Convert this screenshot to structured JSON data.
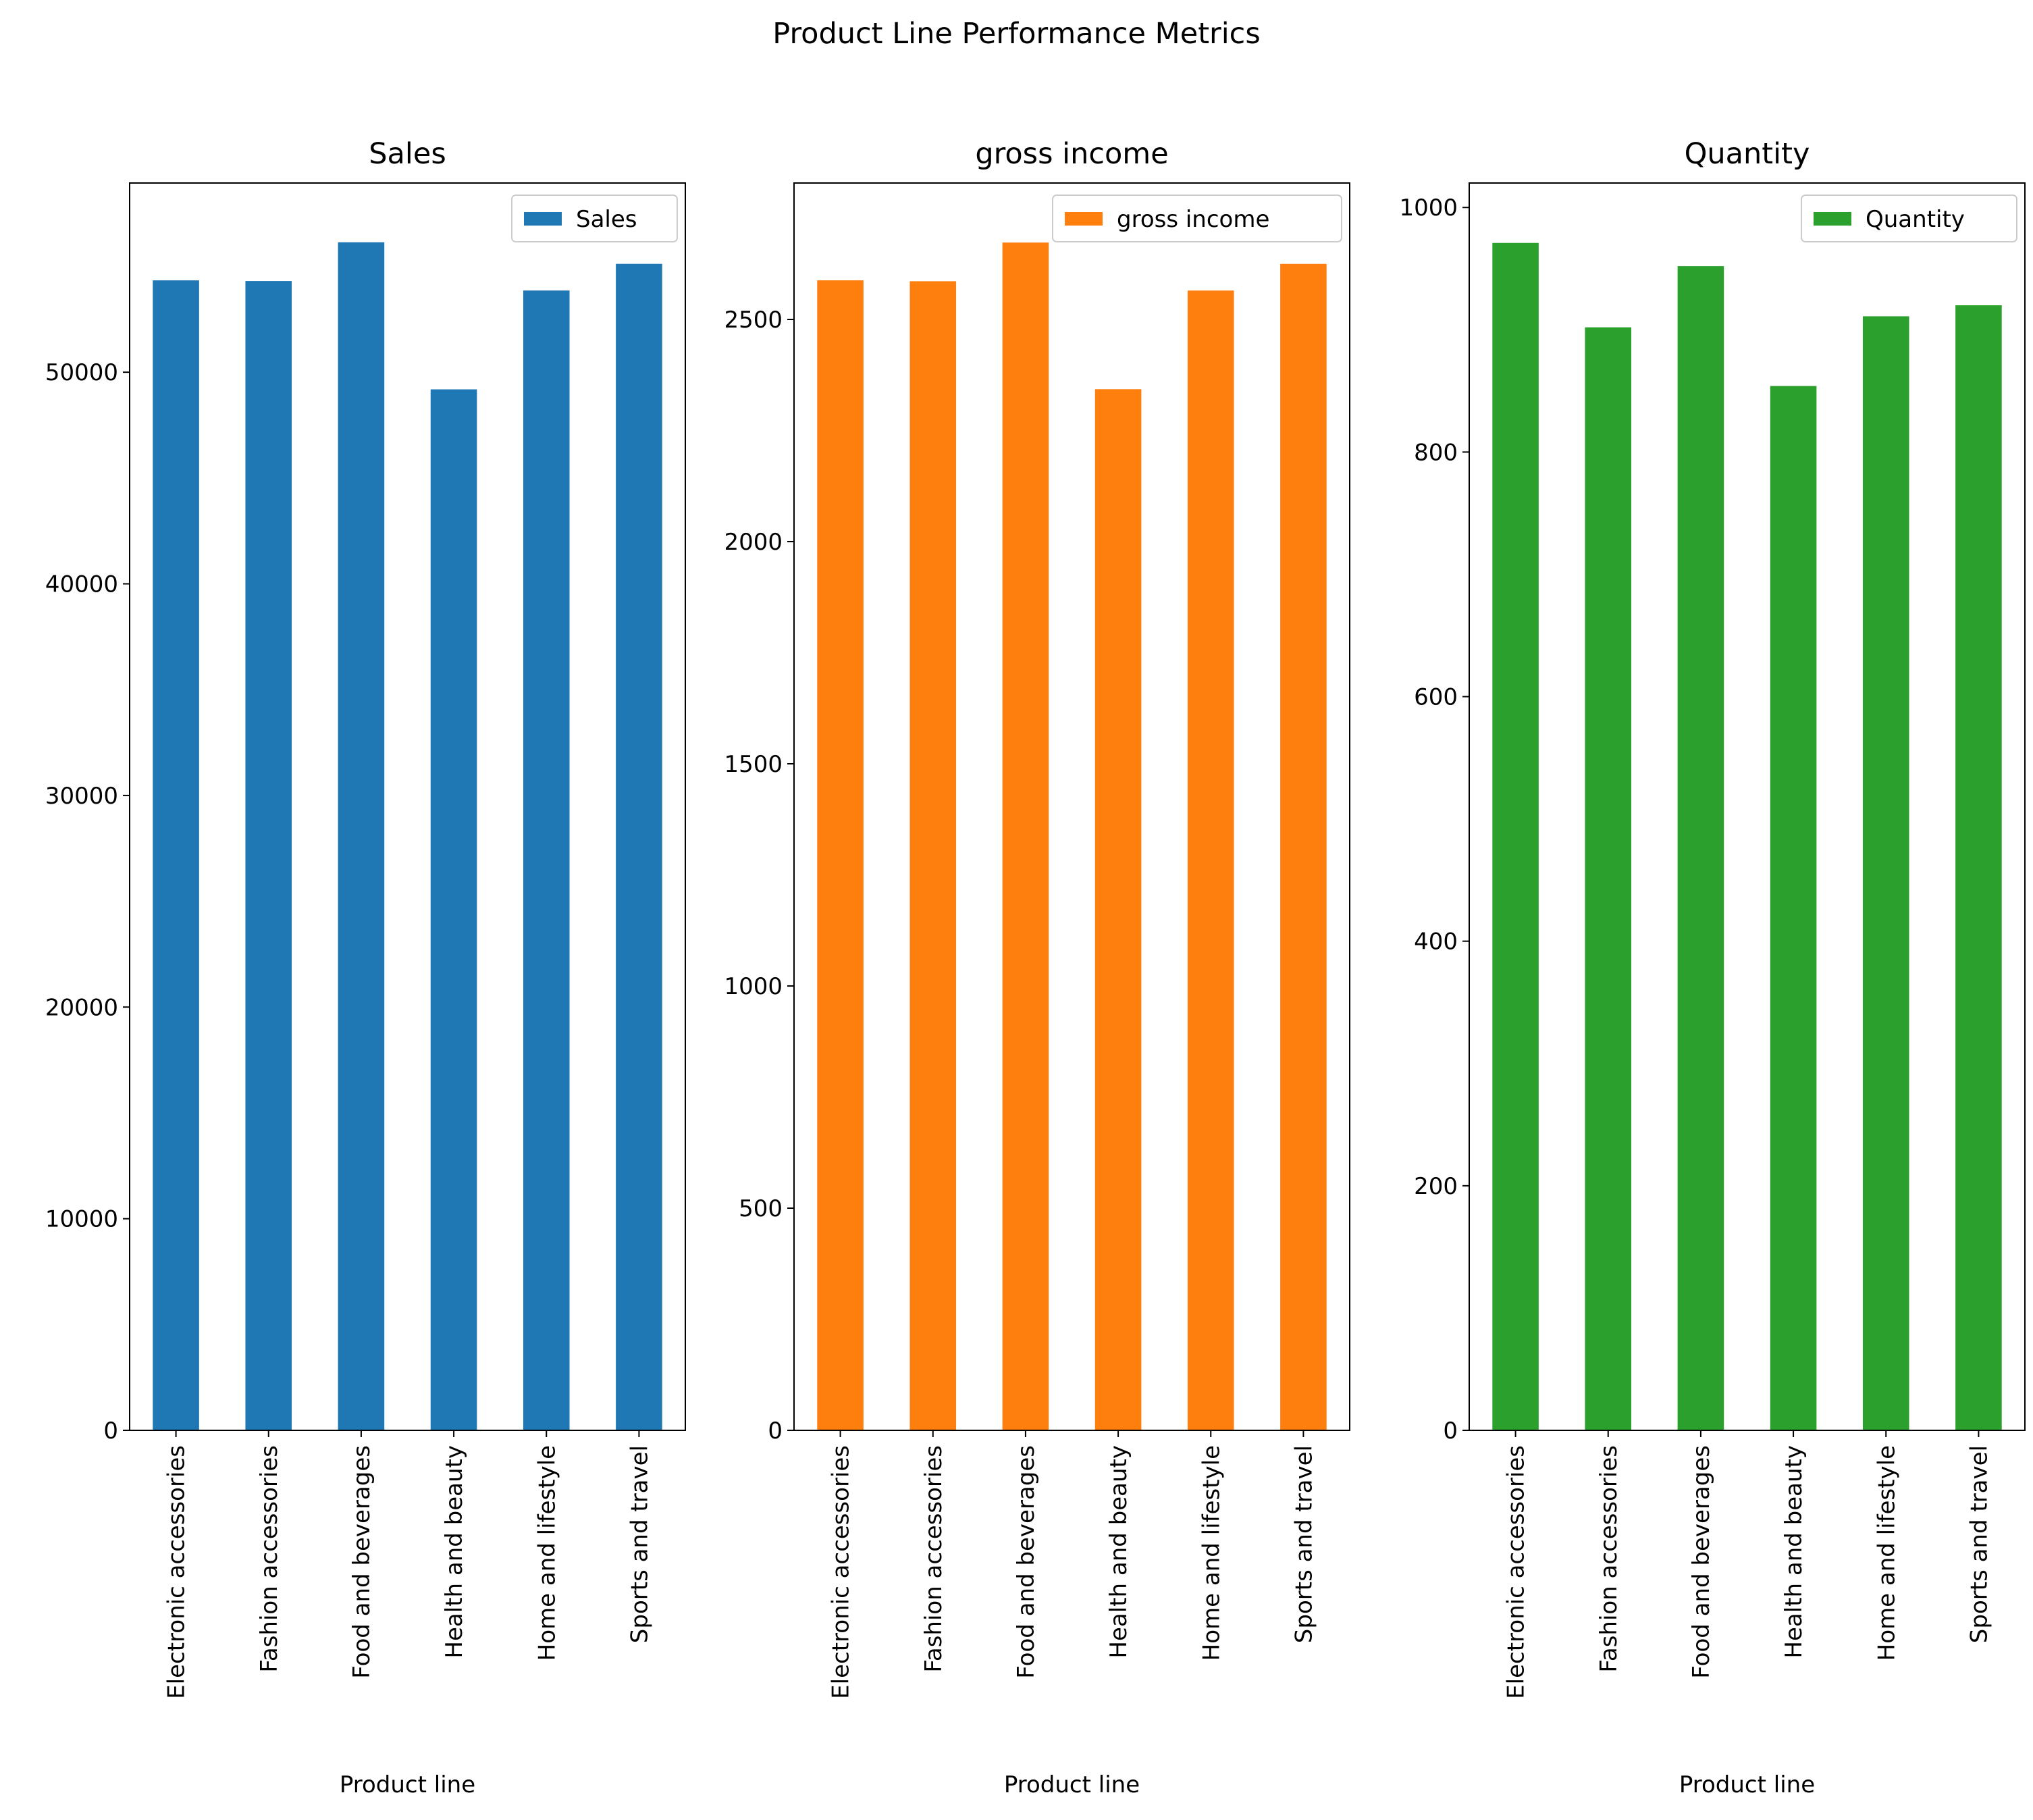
{
  "figure": {
    "suptitle": "Product Line Performance Metrics"
  },
  "chart_data": [
    {
      "type": "bar",
      "title": "Sales",
      "xlabel": "Product line",
      "ylabel": "",
      "categories": [
        "Electronic accessories",
        "Fashion accessories",
        "Food and beverages",
        "Health and beauty",
        "Home and lifestyle",
        "Sports and travel"
      ],
      "series": [
        {
          "name": "Sales",
          "values": [
            54340,
            54310,
            56140,
            49190,
            53860,
            55120
          ],
          "color": "#1f77b4"
        }
      ],
      "ylim": [
        0,
        58940
      ],
      "yticks": [
        0,
        10000,
        20000,
        30000,
        40000,
        50000
      ],
      "grid": false,
      "legend": "top-right"
    },
    {
      "type": "bar",
      "title": "gross income",
      "xlabel": "Product line",
      "ylabel": "",
      "categories": [
        "Electronic accessories",
        "Fashion accessories",
        "Food and beverages",
        "Health and beauty",
        "Home and lifestyle",
        "Sports and travel"
      ],
      "series": [
        {
          "name": "gross income",
          "values": [
            2588,
            2586,
            2673,
            2343,
            2565,
            2625
          ],
          "color": "#ff7f0e"
        }
      ],
      "ylim": [
        0,
        2807
      ],
      "yticks": [
        0,
        500,
        1000,
        1500,
        2000,
        2500
      ],
      "grid": false,
      "legend": "top-right"
    },
    {
      "type": "bar",
      "title": "Quantity",
      "xlabel": "Product line",
      "ylabel": "",
      "categories": [
        "Electronic accessories",
        "Fashion accessories",
        "Food and beverages",
        "Health and beauty",
        "Home and lifestyle",
        "Sports and travel"
      ],
      "series": [
        {
          "name": "Quantity",
          "values": [
            971,
            902,
            952,
            854,
            911,
            920
          ],
          "color": "#2ca02c"
        }
      ],
      "ylim": [
        0,
        1020
      ],
      "yticks": [
        0,
        200,
        400,
        600,
        800,
        1000
      ],
      "grid": false,
      "legend": "top-right"
    }
  ]
}
